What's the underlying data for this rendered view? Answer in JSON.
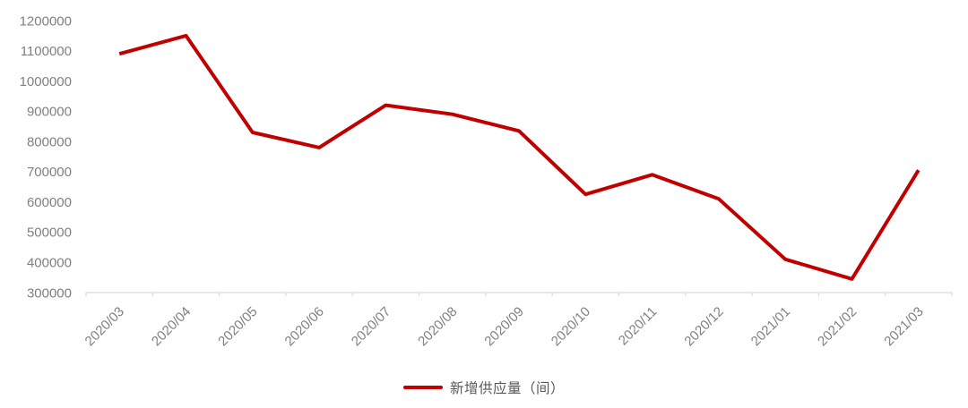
{
  "chart_data": {
    "type": "line",
    "title": "",
    "xlabel": "",
    "ylabel": "",
    "categories": [
      "2020/03",
      "2020/04",
      "2020/05",
      "2020/06",
      "2020/07",
      "2020/08",
      "2020/09",
      "2020/10",
      "2020/11",
      "2020/12",
      "2021/01",
      "2021/02",
      "2021/03"
    ],
    "series": [
      {
        "name": "新增供应量（间）",
        "color": "#c00000",
        "values": [
          1090000,
          1150000,
          830000,
          780000,
          920000,
          890000,
          835000,
          625000,
          690000,
          610000,
          410000,
          345000,
          705000
        ]
      }
    ],
    "ylim": [
      300000,
      1200000
    ],
    "y_ticks": [
      300000,
      400000,
      500000,
      600000,
      700000,
      800000,
      900000,
      1000000,
      1100000,
      1200000
    ],
    "grid": false,
    "x_label_rotation": -45,
    "legend_position": "bottom-center"
  },
  "colors": {
    "line": "#c00000",
    "axis_line": "#d9d9d9",
    "tick_label": "#808080",
    "legend_text": "#595959",
    "background": "#ffffff"
  }
}
